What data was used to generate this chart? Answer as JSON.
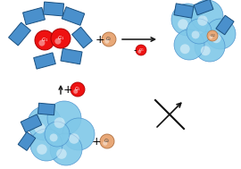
{
  "bg_color": "#ffffff",
  "blue_rect_color": "#4a90cc",
  "blue_rect_edge": "#1a5080",
  "blue_sphere_color": "#80c8e8",
  "blue_sphere_edge": "#4a90cc",
  "blue_sphere_face_light": "#a8d8f0",
  "red_sphere_color": "#ee1111",
  "red_sphere_edge": "#aa0000",
  "orange_sphere_color": "#e8a878",
  "orange_sphere_edge": "#b07040",
  "arrow_color": "#111111",
  "cross_color": "#111111"
}
